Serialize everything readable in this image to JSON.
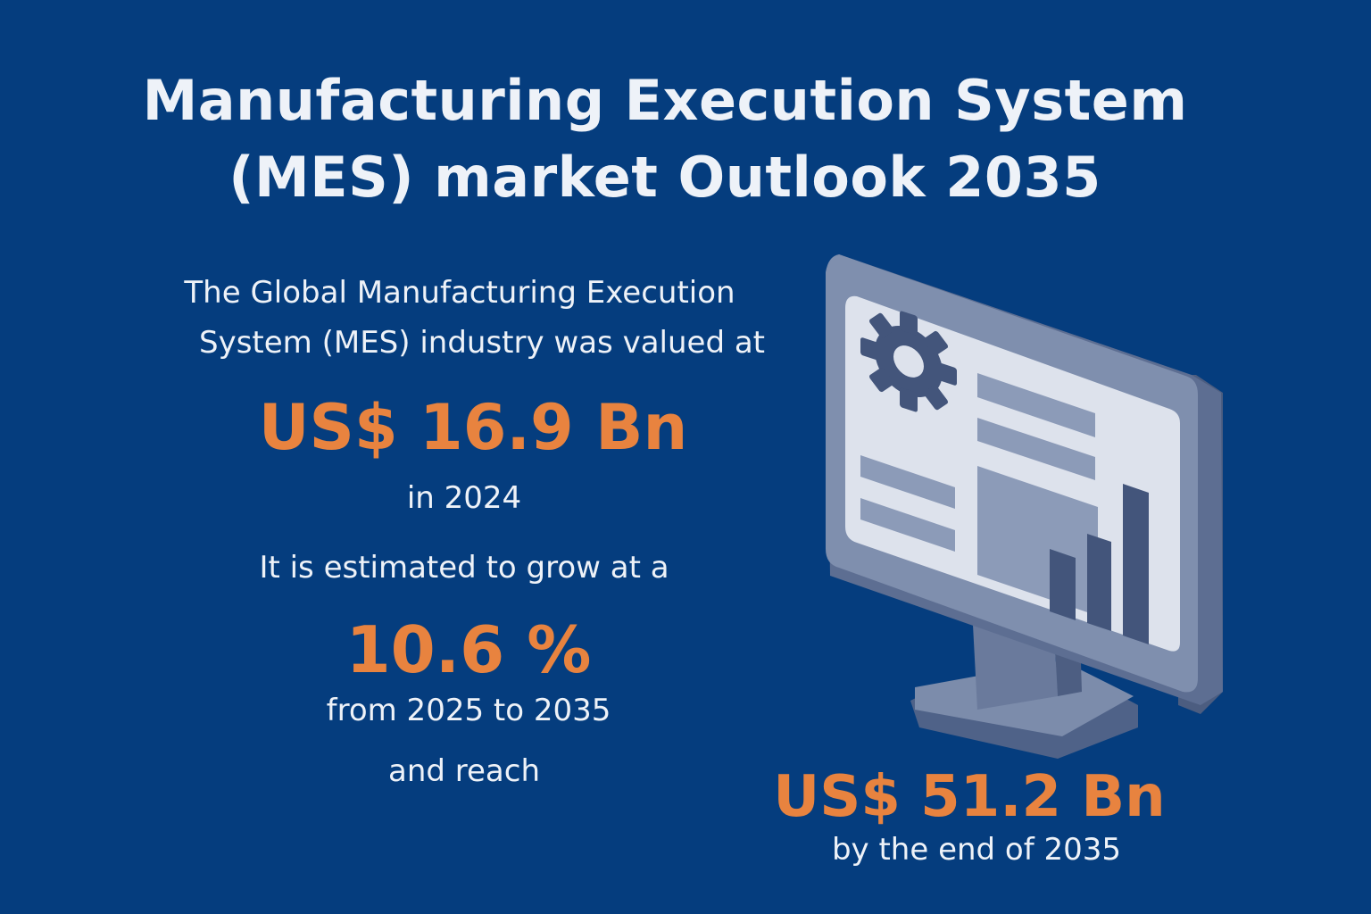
{
  "title": {
    "line1": "Manufacturing Execution System",
    "line2": "(MES) market Outlook 2035"
  },
  "intro": {
    "line1": "The Global Manufacturing Execution",
    "line2": "System (MES) industry was valued at"
  },
  "value_2024": "US$ 16.9 Bn",
  "year_2024": "in 2024",
  "growth_text": "It is estimated to grow at a",
  "cagr": "10.6 %",
  "period": "from 2025 to 2035",
  "reach_text": "and reach",
  "value_2035": "US$ 51.2 Bn",
  "end_text": "by the end of 2035",
  "colors": {
    "background": "#053d7e",
    "accent": "#e8833f",
    "text": "#eef2f8"
  },
  "illustration": {
    "icons": [
      "monitor-icon",
      "gear-icon",
      "bar-chart-icon"
    ]
  }
}
